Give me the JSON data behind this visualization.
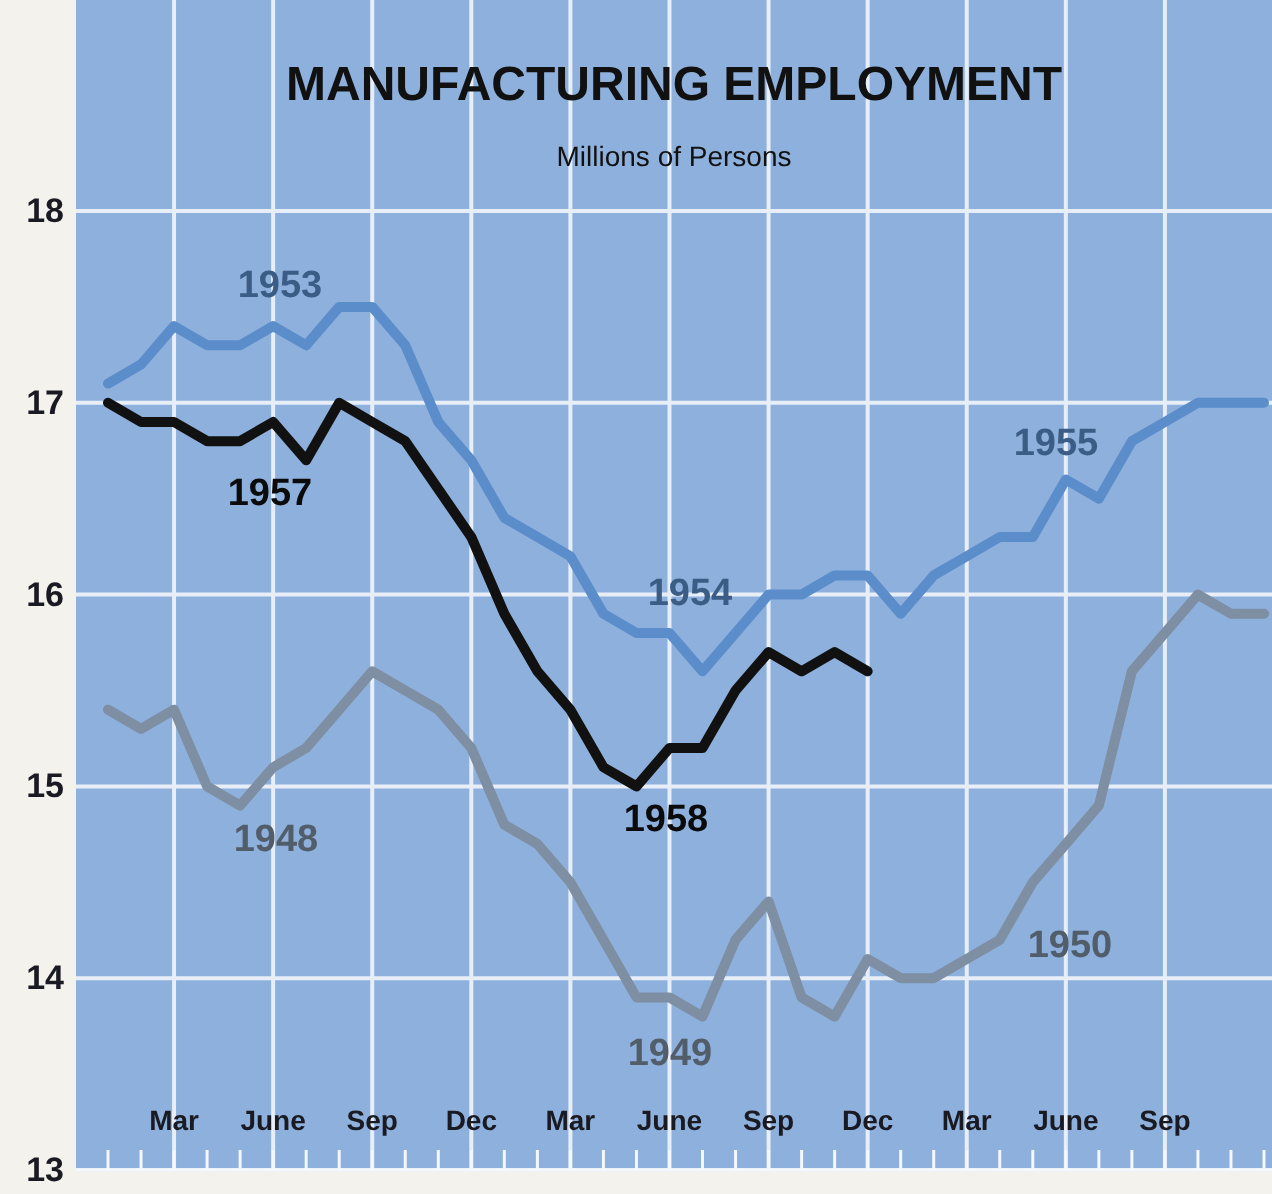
{
  "chart_data": {
    "type": "line",
    "title": "MANUFACTURING EMPLOYMENT",
    "subtitle": "Millions of Persons",
    "categories": [
      null,
      null,
      "Mar",
      null,
      null,
      "June",
      null,
      null,
      "Sep",
      null,
      null,
      "Dec",
      null,
      null,
      "Mar",
      null,
      null,
      "June",
      null,
      null,
      "Sep",
      null,
      null,
      "Dec",
      null,
      null,
      "Mar",
      null,
      null,
      "June",
      null,
      null,
      "Sep",
      null,
      null,
      null
    ],
    "ylim": [
      13,
      19.1
    ],
    "yticks": [
      13,
      14,
      15,
      16,
      17,
      18
    ],
    "grid": true,
    "line_style": "solid",
    "series": [
      {
        "color": "#7e8ea3",
        "values": [
          15.4,
          15.3,
          15.4,
          15.0,
          14.9,
          15.1,
          15.2,
          15.4,
          15.6,
          15.5,
          15.4,
          15.2,
          14.8,
          14.7,
          14.5,
          14.2,
          13.9,
          13.9,
          13.8,
          14.2,
          14.4,
          13.9,
          13.8,
          14.1,
          14.0,
          14.0,
          14.1,
          14.2,
          14.5,
          14.7,
          14.9,
          15.6,
          15.8,
          16.0,
          15.9,
          15.9
        ]
      },
      {
        "color": "#5b8dcb",
        "values": [
          17.1,
          17.2,
          17.4,
          17.3,
          17.3,
          17.4,
          17.3,
          17.5,
          17.5,
          17.3,
          16.9,
          16.7,
          16.4,
          16.3,
          16.2,
          15.9,
          15.8,
          15.8,
          15.6,
          15.8,
          16.0,
          16.0,
          16.1,
          16.1,
          15.9,
          16.1,
          16.2,
          16.3,
          16.3,
          16.6,
          16.5,
          16.8,
          16.9,
          17.0,
          17.0,
          17.0
        ]
      },
      {
        "color": "#111111",
        "values": [
          17.0,
          16.9,
          16.9,
          16.8,
          16.8,
          16.9,
          16.7,
          17.0,
          16.9,
          16.8,
          16.55,
          16.3,
          15.9,
          15.6,
          15.4,
          15.1,
          15.0,
          15.2,
          15.2,
          15.5,
          15.7,
          15.6,
          15.7,
          15.6,
          null,
          null,
          null,
          null,
          null,
          null,
          null,
          null,
          null,
          null,
          null,
          null
        ]
      }
    ],
    "annotations": [
      "1953",
      "1957",
      "1954",
      "1958",
      "1955",
      "1948",
      "1949",
      "1950"
    ]
  }
}
